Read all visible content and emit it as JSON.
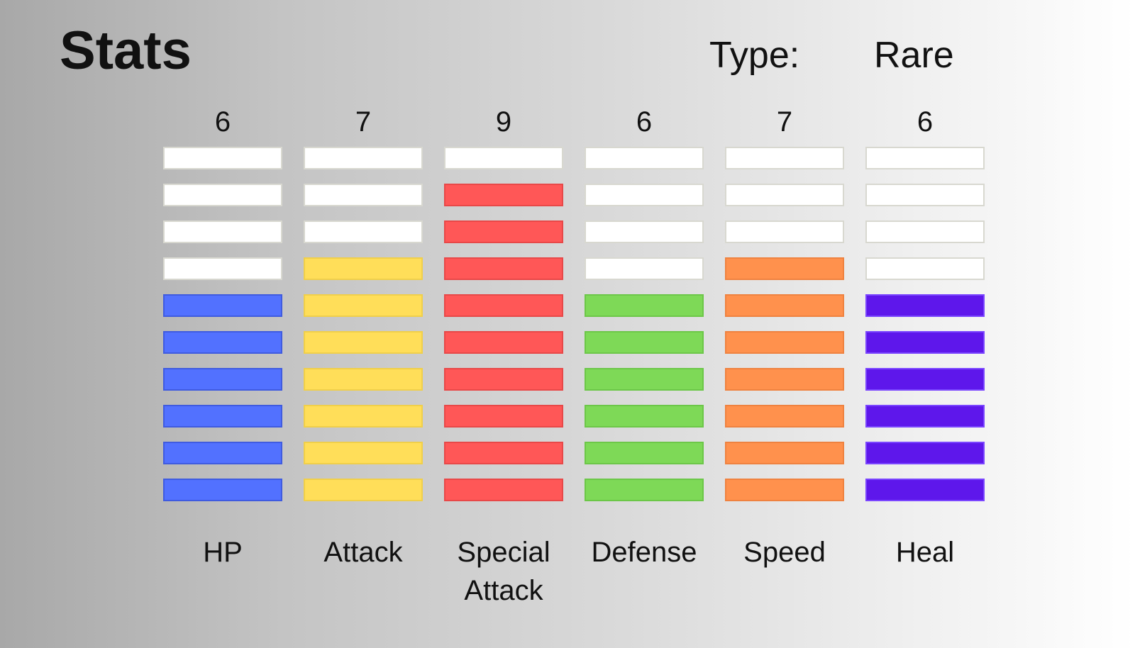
{
  "title": "Stats",
  "type_label": "Type:",
  "type_value": "Rare",
  "max_level": 10,
  "empty_color": "#ffffff",
  "stats": [
    {
      "name": "HP",
      "value": "6",
      "level": 6,
      "color": "#5271ff",
      "border": "#3f5be0"
    },
    {
      "name": "Attack",
      "value": "7",
      "level": 7,
      "color": "#ffde59",
      "border": "#f0cf4a"
    },
    {
      "name": "Special Attack",
      "value": "9",
      "level": 9,
      "color": "#ff5757",
      "border": "#e84848"
    },
    {
      "name": "Defense",
      "value": "6",
      "level": 6,
      "color": "#7ed957",
      "border": "#6cc748"
    },
    {
      "name": "Speed",
      "value": "7",
      "level": 7,
      "color": "#ff914d",
      "border": "#ef8240"
    },
    {
      "name": "Heal",
      "value": "6",
      "level": 6,
      "color": "#5e17eb",
      "border": "#7a45ff"
    }
  ]
}
